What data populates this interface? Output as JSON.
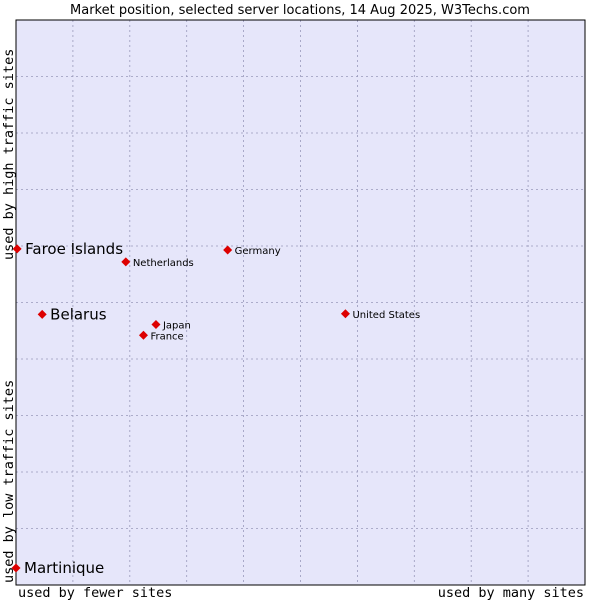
{
  "chart_data": {
    "type": "scatter",
    "title": "Market position, selected server locations, 14 Aug 2025, W3Techs.com",
    "xlabel_low": "used by fewer sites",
    "xlabel_high": "used by many sites",
    "ylabel_low": "used by low traffic sites",
    "ylabel_high": "used by high traffic sites",
    "xlim": [
      0,
      100
    ],
    "ylim": [
      0,
      100
    ],
    "grid": true,
    "colors": {
      "plot_bg": "#e6e6fa",
      "grid": "#9999bb",
      "marker": "#dd0000",
      "frame": "#000000"
    },
    "points": [
      {
        "name": "Faroe Islands",
        "x": 0.2,
        "y": 59.5,
        "emphasis": true
      },
      {
        "name": "Netherlands",
        "x": 19.3,
        "y": 57.2,
        "emphasis": false
      },
      {
        "name": "Germany",
        "x": 37.2,
        "y": 59.3,
        "emphasis": false
      },
      {
        "name": "Belarus",
        "x": 4.6,
        "y": 47.9,
        "emphasis": true
      },
      {
        "name": "Japan",
        "x": 24.6,
        "y": 46.1,
        "emphasis": false
      },
      {
        "name": "France",
        "x": 22.4,
        "y": 44.2,
        "emphasis": false
      },
      {
        "name": "United States",
        "x": 57.9,
        "y": 48.0,
        "emphasis": false
      },
      {
        "name": "Martinique",
        "x": 0.0,
        "y": 3.0,
        "emphasis": true
      }
    ]
  }
}
